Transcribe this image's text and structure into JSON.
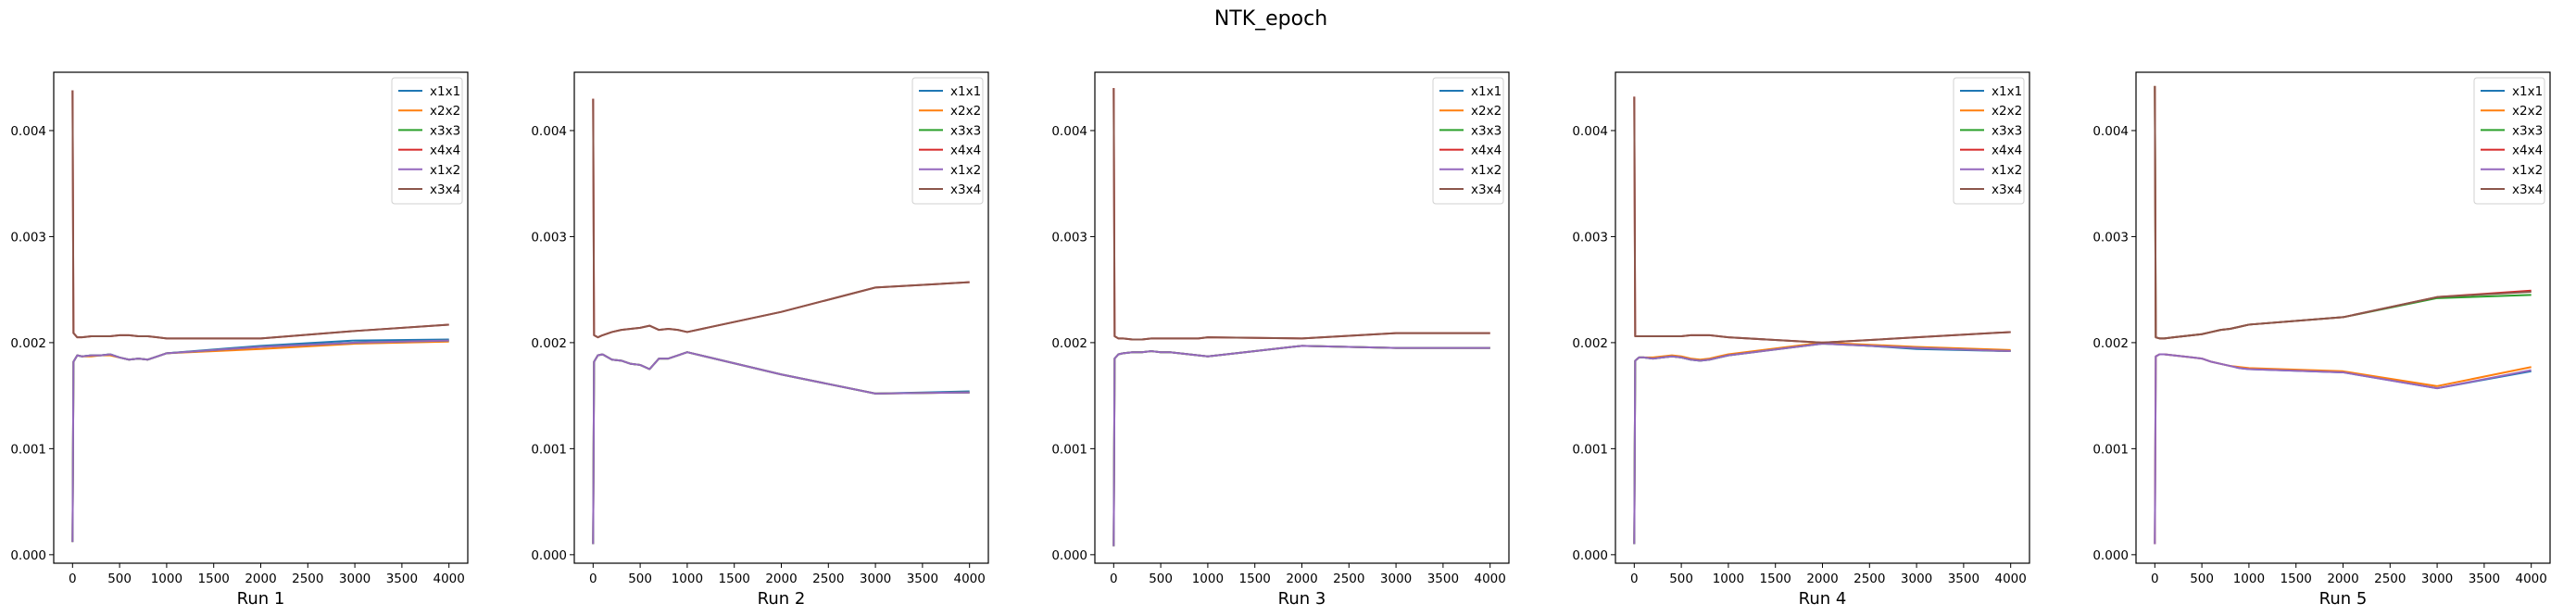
{
  "figure": {
    "title": "NTK_epoch"
  },
  "colors": {
    "x1x1": "#1f77b4",
    "x2x2": "#ff7f0e",
    "x3x3": "#2ca02c",
    "x4x4": "#d62728",
    "x1x2": "#9467bd",
    "x3x4": "#8c564b"
  },
  "chart_data": [
    {
      "type": "line",
      "xlabel": "Run 1",
      "xlim": [
        -200,
        4200
      ],
      "ylim": [
        -8e-05,
        0.00455
      ],
      "xticks": [
        0,
        500,
        1000,
        1500,
        2000,
        2500,
        3000,
        3500,
        4000
      ],
      "yticks": [
        0.0,
        0.001,
        0.002,
        0.003,
        0.004
      ],
      "ytick_labels": [
        "0.000",
        "0.001",
        "0.002",
        "0.003",
        "0.004"
      ],
      "legend": "top-right",
      "x": [
        0,
        10,
        50,
        100,
        200,
        300,
        400,
        500,
        600,
        700,
        800,
        900,
        1000,
        2000,
        3000,
        4000
      ],
      "series": [
        {
          "name": "x1x1",
          "values": [
            0.00012,
            0.00182,
            0.00188,
            0.00187,
            0.00188,
            0.00188,
            0.00189,
            0.00186,
            0.00184,
            0.00185,
            0.00184,
            0.00187,
            0.0019,
            0.00197,
            0.00202,
            0.00203
          ]
        },
        {
          "name": "x2x2",
          "values": [
            0.00012,
            0.00182,
            0.00188,
            0.00187,
            0.00187,
            0.00188,
            0.00188,
            0.00186,
            0.00184,
            0.00185,
            0.00184,
            0.00187,
            0.0019,
            0.00194,
            0.00199,
            0.00201
          ]
        },
        {
          "name": "x3x3",
          "values": [
            0.00012,
            0.00182,
            0.00188,
            0.00187,
            0.00188,
            0.00188,
            0.00189,
            0.00186,
            0.00184,
            0.00185,
            0.00184,
            0.00187,
            0.0019,
            0.00196,
            0.002,
            0.00202
          ]
        },
        {
          "name": "x4x4",
          "values": [
            0.00438,
            0.00209,
            0.00205,
            0.00205,
            0.00206,
            0.00206,
            0.00206,
            0.00207,
            0.00207,
            0.00206,
            0.00206,
            0.00205,
            0.00204,
            0.00204,
            0.00211,
            0.00217
          ]
        },
        {
          "name": "x1x2",
          "values": [
            0.00012,
            0.00182,
            0.00188,
            0.00187,
            0.00188,
            0.00188,
            0.00189,
            0.00186,
            0.00184,
            0.00185,
            0.00184,
            0.00187,
            0.0019,
            0.00196,
            0.002,
            0.00202
          ]
        },
        {
          "name": "x3x4",
          "values": [
            0.00438,
            0.00209,
            0.00205,
            0.00205,
            0.00206,
            0.00206,
            0.00206,
            0.00207,
            0.00207,
            0.00206,
            0.00206,
            0.00205,
            0.00204,
            0.00204,
            0.00211,
            0.00217
          ]
        }
      ]
    },
    {
      "type": "line",
      "xlabel": "Run 2",
      "xlim": [
        -200,
        4200
      ],
      "ylim": [
        -8e-05,
        0.00455
      ],
      "xticks": [
        0,
        500,
        1000,
        1500,
        2000,
        2500,
        3000,
        3500,
        4000
      ],
      "yticks": [
        0.0,
        0.001,
        0.002,
        0.003,
        0.004
      ],
      "ytick_labels": [
        "0.000",
        "0.001",
        "0.002",
        "0.003",
        "0.004"
      ],
      "legend": "top-right",
      "x": [
        0,
        10,
        50,
        100,
        200,
        300,
        400,
        500,
        600,
        700,
        800,
        900,
        1000,
        2000,
        3000,
        4000
      ],
      "series": [
        {
          "name": "x1x1",
          "values": [
            0.0001,
            0.00182,
            0.00188,
            0.00189,
            0.00184,
            0.00183,
            0.0018,
            0.00179,
            0.00175,
            0.00185,
            0.00185,
            0.00188,
            0.00191,
            0.0017,
            0.00152,
            0.00154
          ]
        },
        {
          "name": "x2x2",
          "values": [
            0.0001,
            0.00182,
            0.00188,
            0.00189,
            0.00184,
            0.00183,
            0.0018,
            0.00179,
            0.00175,
            0.00185,
            0.00185,
            0.00188,
            0.00191,
            0.0017,
            0.00152,
            0.00153
          ]
        },
        {
          "name": "x3x3",
          "values": [
            0.0001,
            0.00182,
            0.00188,
            0.00189,
            0.00184,
            0.00183,
            0.0018,
            0.00179,
            0.00175,
            0.00185,
            0.00185,
            0.00188,
            0.00191,
            0.0017,
            0.00152,
            0.00153
          ]
        },
        {
          "name": "x4x4",
          "values": [
            0.0043,
            0.00207,
            0.00205,
            0.00207,
            0.0021,
            0.00212,
            0.00213,
            0.00214,
            0.00216,
            0.00212,
            0.00213,
            0.00212,
            0.0021,
            0.00229,
            0.00252,
            0.00257
          ]
        },
        {
          "name": "x1x2",
          "values": [
            0.0001,
            0.00182,
            0.00188,
            0.00189,
            0.00184,
            0.00183,
            0.0018,
            0.00179,
            0.00175,
            0.00185,
            0.00185,
            0.00188,
            0.00191,
            0.0017,
            0.00152,
            0.00153
          ]
        },
        {
          "name": "x3x4",
          "values": [
            0.0043,
            0.00207,
            0.00205,
            0.00207,
            0.0021,
            0.00212,
            0.00213,
            0.00214,
            0.00216,
            0.00212,
            0.00213,
            0.00212,
            0.0021,
            0.00229,
            0.00252,
            0.00257
          ]
        }
      ]
    },
    {
      "type": "line",
      "xlabel": "Run 3",
      "xlim": [
        -200,
        4200
      ],
      "ylim": [
        -8e-05,
        0.00455
      ],
      "xticks": [
        0,
        500,
        1000,
        1500,
        2000,
        2500,
        3000,
        3500,
        4000
      ],
      "yticks": [
        0.0,
        0.001,
        0.002,
        0.003,
        0.004
      ],
      "ytick_labels": [
        "0.000",
        "0.001",
        "0.002",
        "0.003",
        "0.004"
      ],
      "legend": "top-right",
      "x": [
        0,
        10,
        50,
        100,
        200,
        300,
        400,
        500,
        600,
        700,
        800,
        900,
        1000,
        2000,
        3000,
        4000
      ],
      "series": [
        {
          "name": "x1x1",
          "values": [
            8e-05,
            0.00185,
            0.00189,
            0.0019,
            0.00191,
            0.00191,
            0.00192,
            0.00191,
            0.00191,
            0.0019,
            0.00189,
            0.00188,
            0.00187,
            0.00197,
            0.00195,
            0.00195
          ]
        },
        {
          "name": "x2x2",
          "values": [
            8e-05,
            0.00185,
            0.00189,
            0.0019,
            0.00191,
            0.00191,
            0.00192,
            0.00191,
            0.00191,
            0.0019,
            0.00189,
            0.00188,
            0.00187,
            0.00197,
            0.00195,
            0.00195
          ]
        },
        {
          "name": "x3x3",
          "values": [
            8e-05,
            0.00185,
            0.00189,
            0.0019,
            0.00191,
            0.00191,
            0.00192,
            0.00191,
            0.00191,
            0.0019,
            0.00189,
            0.00188,
            0.00187,
            0.00197,
            0.00195,
            0.00195
          ]
        },
        {
          "name": "x4x4",
          "values": [
            0.0044,
            0.00206,
            0.00204,
            0.00204,
            0.00203,
            0.00203,
            0.00204,
            0.00204,
            0.00204,
            0.00204,
            0.00204,
            0.00204,
            0.00205,
            0.00204,
            0.00209,
            0.00209
          ]
        },
        {
          "name": "x1x2",
          "values": [
            8e-05,
            0.00185,
            0.00189,
            0.0019,
            0.00191,
            0.00191,
            0.00192,
            0.00191,
            0.00191,
            0.0019,
            0.00189,
            0.00188,
            0.00187,
            0.00197,
            0.00195,
            0.00195
          ]
        },
        {
          "name": "x3x4",
          "values": [
            0.0044,
            0.00206,
            0.00204,
            0.00204,
            0.00203,
            0.00203,
            0.00204,
            0.00204,
            0.00204,
            0.00204,
            0.00204,
            0.00204,
            0.00205,
            0.00204,
            0.00209,
            0.00209
          ]
        }
      ]
    },
    {
      "type": "line",
      "xlabel": "Run 4",
      "xlim": [
        -200,
        4200
      ],
      "ylim": [
        -8e-05,
        0.00455
      ],
      "xticks": [
        0,
        500,
        1000,
        1500,
        2000,
        2500,
        3000,
        3500,
        4000
      ],
      "yticks": [
        0.0,
        0.001,
        0.002,
        0.003,
        0.004
      ],
      "ytick_labels": [
        "0.000",
        "0.001",
        "0.002",
        "0.003",
        "0.004"
      ],
      "legend": "top-right",
      "x": [
        0,
        10,
        50,
        100,
        200,
        300,
        400,
        500,
        600,
        700,
        800,
        900,
        1000,
        2000,
        3000,
        4000
      ],
      "series": [
        {
          "name": "x1x1",
          "values": [
            0.0001,
            0.00183,
            0.00186,
            0.00186,
            0.00185,
            0.00186,
            0.00187,
            0.00186,
            0.00184,
            0.00183,
            0.00184,
            0.00186,
            0.00188,
            0.002,
            0.00194,
            0.00192
          ]
        },
        {
          "name": "x2x2",
          "values": [
            0.0001,
            0.00183,
            0.00186,
            0.00186,
            0.00186,
            0.00187,
            0.00188,
            0.00187,
            0.00185,
            0.00184,
            0.00185,
            0.00187,
            0.00189,
            0.002,
            0.00196,
            0.00193
          ]
        },
        {
          "name": "x3x3",
          "values": [
            0.0001,
            0.00183,
            0.00186,
            0.00186,
            0.00185,
            0.00186,
            0.00187,
            0.00186,
            0.00184,
            0.00183,
            0.00184,
            0.00186,
            0.00188,
            0.00199,
            0.00195,
            0.00192
          ]
        },
        {
          "name": "x4x4",
          "values": [
            0.00432,
            0.00206,
            0.00206,
            0.00206,
            0.00206,
            0.00206,
            0.00206,
            0.00206,
            0.00207,
            0.00207,
            0.00207,
            0.00206,
            0.00205,
            0.002,
            0.00205,
            0.0021
          ]
        },
        {
          "name": "x1x2",
          "values": [
            0.0001,
            0.00183,
            0.00186,
            0.00186,
            0.00185,
            0.00186,
            0.00187,
            0.00186,
            0.00184,
            0.00183,
            0.00184,
            0.00186,
            0.00188,
            0.00199,
            0.00195,
            0.00192
          ]
        },
        {
          "name": "x3x4",
          "values": [
            0.00432,
            0.00206,
            0.00206,
            0.00206,
            0.00206,
            0.00206,
            0.00206,
            0.00206,
            0.00207,
            0.00207,
            0.00207,
            0.00206,
            0.00205,
            0.002,
            0.00205,
            0.0021
          ]
        }
      ]
    },
    {
      "type": "line",
      "xlabel": "Run 5",
      "xlim": [
        -200,
        4200
      ],
      "ylim": [
        -8e-05,
        0.00455
      ],
      "xticks": [
        0,
        500,
        1000,
        1500,
        2000,
        2500,
        3000,
        3500,
        4000
      ],
      "yticks": [
        0.0,
        0.001,
        0.002,
        0.003,
        0.004
      ],
      "ytick_labels": [
        "0.000",
        "0.001",
        "0.002",
        "0.003",
        "0.004"
      ],
      "legend": "top-right",
      "x": [
        0,
        10,
        50,
        100,
        200,
        300,
        400,
        500,
        600,
        700,
        800,
        900,
        1000,
        2000,
        3000,
        4000
      ],
      "series": [
        {
          "name": "x1x1",
          "values": [
            0.0001,
            0.00187,
            0.00189,
            0.00189,
            0.00188,
            0.00187,
            0.00186,
            0.00185,
            0.00182,
            0.0018,
            0.00178,
            0.00176,
            0.00175,
            0.00172,
            0.00157,
            0.00173
          ]
        },
        {
          "name": "x2x2",
          "values": [
            0.0001,
            0.00187,
            0.00189,
            0.00189,
            0.00188,
            0.00187,
            0.00186,
            0.00185,
            0.00182,
            0.0018,
            0.00178,
            0.00177,
            0.00176,
            0.00173,
            0.00159,
            0.00177
          ]
        },
        {
          "name": "x3x3",
          "values": [
            0.00442,
            0.00205,
            0.00204,
            0.00204,
            0.00205,
            0.00206,
            0.00207,
            0.00208,
            0.0021,
            0.00212,
            0.00213,
            0.00215,
            0.00217,
            0.00224,
            0.00242,
            0.00245
          ]
        },
        {
          "name": "x4x4",
          "values": [
            0.00442,
            0.00205,
            0.00204,
            0.00204,
            0.00205,
            0.00206,
            0.00207,
            0.00208,
            0.0021,
            0.00212,
            0.00213,
            0.00215,
            0.00217,
            0.00224,
            0.00243,
            0.00249
          ]
        },
        {
          "name": "x1x2",
          "values": [
            0.0001,
            0.00187,
            0.00189,
            0.00189,
            0.00188,
            0.00187,
            0.00186,
            0.00185,
            0.00182,
            0.0018,
            0.00178,
            0.00176,
            0.00175,
            0.00172,
            0.00157,
            0.00174
          ]
        },
        {
          "name": "x3x4",
          "values": [
            0.00442,
            0.00205,
            0.00204,
            0.00204,
            0.00205,
            0.00206,
            0.00207,
            0.00208,
            0.0021,
            0.00212,
            0.00213,
            0.00215,
            0.00217,
            0.00224,
            0.00243,
            0.00248
          ]
        }
      ]
    }
  ]
}
